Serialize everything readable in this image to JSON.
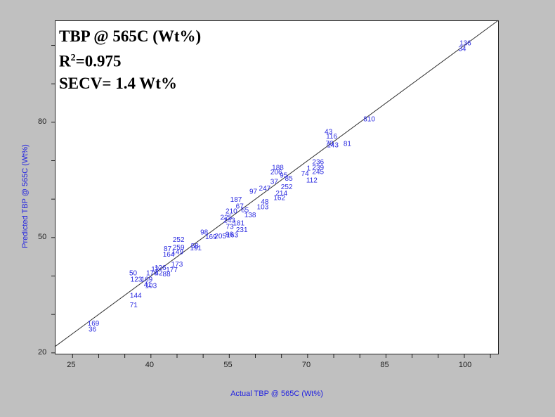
{
  "stats": {
    "title": "TBP @ 565C (Wt%)",
    "r2_prefix": "R",
    "r2_sup": "2",
    "r2_value": "=0.975",
    "secv": "SECV= 1.4 Wt%"
  },
  "axes": {
    "xlabel": "Actual TBP @ 565C (Wt%)",
    "ylabel": "Predicted TBP @ 565C (Wt%)",
    "xticks": [
      "25",
      "40",
      "55",
      "70",
      "85",
      "100"
    ],
    "yticks": [
      "20",
      "50",
      "80"
    ]
  },
  "colors": {
    "background": "#c0c0c0",
    "plot_bg": "#ffffff",
    "point_label": "#2a2ae0",
    "axis_label": "#2020e0",
    "line": "#303030"
  },
  "chart_data": {
    "type": "scatter",
    "title": "TBP @ 565C (Wt%)",
    "annotations": [
      "R²=0.975",
      "SECV= 1.4 Wt%"
    ],
    "xlabel": "Actual TBP @ 565C (Wt%)",
    "ylabel": "Predicted TBP @ 565C (Wt%)",
    "xlim": [
      21.6,
      106.6
    ],
    "ylim": [
      19.6,
      106.5
    ],
    "xticks": [
      25,
      40,
      55,
      70,
      85,
      100
    ],
    "yticks": [
      20,
      50,
      80
    ],
    "grid": false,
    "reference_line": "y = x",
    "points": [
      {
        "label": "169",
        "x": 29.0,
        "y": 27.8
      },
      {
        "label": "36",
        "x": 28.8,
        "y": 26.3
      },
      {
        "label": "71",
        "x": 36.7,
        "y": 32.6
      },
      {
        "label": "144",
        "x": 37.1,
        "y": 35.1
      },
      {
        "label": "50",
        "x": 36.6,
        "y": 40.9
      },
      {
        "label": "123",
        "x": 37.2,
        "y": 39.3
      },
      {
        "label": "169",
        "x": 39.2,
        "y": 39.3
      },
      {
        "label": "41",
        "x": 39.4,
        "y": 37.9
      },
      {
        "label": "103",
        "x": 40.0,
        "y": 37.6
      },
      {
        "label": "170",
        "x": 40.2,
        "y": 40.9
      },
      {
        "label": "42",
        "x": 41.5,
        "y": 40.9
      },
      {
        "label": "12",
        "x": 40.8,
        "y": 41.9
      },
      {
        "label": "126",
        "x": 41.8,
        "y": 42.3
      },
      {
        "label": "88",
        "x": 43.0,
        "y": 40.6
      },
      {
        "label": "177",
        "x": 44.0,
        "y": 41.7
      },
      {
        "label": "173",
        "x": 45.0,
        "y": 43.2
      },
      {
        "label": "164",
        "x": 43.4,
        "y": 45.8
      },
      {
        "label": "87",
        "x": 43.2,
        "y": 47.2
      },
      {
        "label": "149",
        "x": 45.1,
        "y": 46.4
      },
      {
        "label": "259",
        "x": 45.3,
        "y": 47.6
      },
      {
        "label": "252",
        "x": 45.3,
        "y": 49.6
      },
      {
        "label": "58",
        "x": 48.4,
        "y": 48.0
      },
      {
        "label": "191",
        "x": 48.6,
        "y": 47.4
      },
      {
        "label": "98",
        "x": 50.2,
        "y": 51.5
      },
      {
        "label": "169",
        "x": 51.5,
        "y": 50.3
      },
      {
        "label": "205",
        "x": 53.3,
        "y": 50.5
      },
      {
        "label": "96",
        "x": 55.0,
        "y": 51.0
      },
      {
        "label": "163",
        "x": 55.6,
        "y": 50.8
      },
      {
        "label": "231",
        "x": 57.4,
        "y": 52.2
      },
      {
        "label": "73",
        "x": 55.1,
        "y": 53.0
      },
      {
        "label": "181",
        "x": 56.8,
        "y": 53.9
      },
      {
        "label": "243",
        "x": 55.0,
        "y": 54.6
      },
      {
        "label": "225",
        "x": 54.4,
        "y": 55.4
      },
      {
        "label": "138",
        "x": 59.0,
        "y": 56.0
      },
      {
        "label": "65",
        "x": 58.0,
        "y": 57.3
      },
      {
        "label": "210",
        "x": 55.4,
        "y": 57.0
      },
      {
        "label": "67",
        "x": 57.0,
        "y": 58.3
      },
      {
        "label": "187",
        "x": 56.3,
        "y": 60.0
      },
      {
        "label": "97",
        "x": 59.6,
        "y": 62.1
      },
      {
        "label": "103",
        "x": 61.4,
        "y": 58.1
      },
      {
        "label": "48",
        "x": 61.8,
        "y": 59.5
      },
      {
        "label": "162",
        "x": 64.6,
        "y": 60.5
      },
      {
        "label": "214",
        "x": 65.0,
        "y": 61.7
      },
      {
        "label": "247",
        "x": 61.8,
        "y": 63.0
      },
      {
        "label": "252",
        "x": 66.0,
        "y": 63.3
      },
      {
        "label": "85",
        "x": 66.4,
        "y": 65.5
      },
      {
        "label": "37",
        "x": 63.6,
        "y": 64.7
      },
      {
        "label": "95",
        "x": 65.4,
        "y": 66.3
      },
      {
        "label": "206",
        "x": 64.0,
        "y": 67.2
      },
      {
        "label": "188",
        "x": 64.3,
        "y": 68.4
      },
      {
        "label": "74",
        "x": 69.5,
        "y": 66.8
      },
      {
        "label": "112",
        "x": 70.8,
        "y": 65.1
      },
      {
        "label": "1",
        "x": 70.2,
        "y": 68.2
      },
      {
        "label": "245",
        "x": 72.0,
        "y": 67.3
      },
      {
        "label": "239",
        "x": 72.0,
        "y": 68.4
      },
      {
        "label": "236",
        "x": 72.0,
        "y": 69.8
      },
      {
        "label": "143",
        "x": 74.8,
        "y": 74.2
      },
      {
        "label": "70",
        "x": 74.2,
        "y": 74.7
      },
      {
        "label": "81",
        "x": 77.6,
        "y": 74.6
      },
      {
        "label": "116",
        "x": 74.6,
        "y": 76.5
      },
      {
        "label": "43",
        "x": 74.0,
        "y": 77.7
      },
      {
        "label": "810",
        "x": 81.8,
        "y": 81.0
      },
      {
        "label": "34",
        "x": 99.6,
        "y": 99.3
      },
      {
        "label": "136",
        "x": 100.2,
        "y": 100.7
      }
    ]
  }
}
